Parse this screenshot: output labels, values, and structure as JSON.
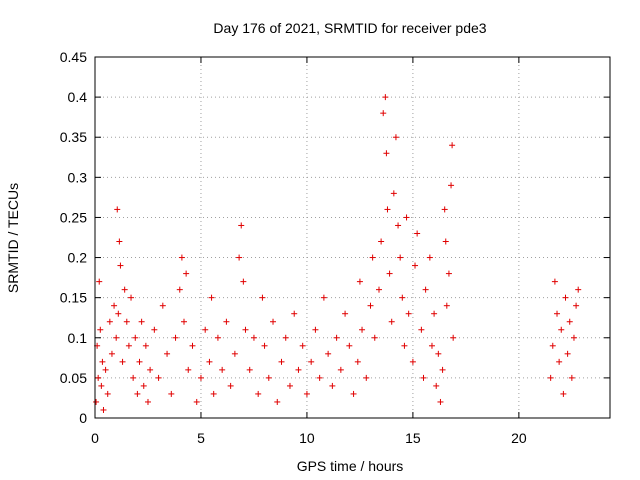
{
  "chart_data": {
    "type": "scatter",
    "title": "Day 176 of 2021, SRMTID for receiver pde3",
    "xlabel": "GPS time / hours",
    "ylabel": "SRMTID / TECUs",
    "xlim": [
      0,
      24.3
    ],
    "ylim": [
      0,
      0.45
    ],
    "xticks": [
      0,
      5,
      10,
      15,
      20
    ],
    "xtick_labels": [
      "0",
      "5",
      "10",
      "15",
      "20"
    ],
    "yticks": [
      0,
      0.05,
      0.1,
      0.15,
      0.2,
      0.25,
      0.3,
      0.35,
      0.4,
      0.45
    ],
    "ytick_labels": [
      "0",
      "0.05",
      "0.1",
      "0.15",
      "0.2",
      "0.25",
      "0.3",
      "0.35",
      "0.4",
      "0.45"
    ],
    "grid": true,
    "marker": "+",
    "color": "#e00000",
    "series": [
      {
        "name": "SRMTID",
        "points": [
          [
            0.05,
            0.02
          ],
          [
            0.1,
            0.09
          ],
          [
            0.15,
            0.05
          ],
          [
            0.2,
            0.17
          ],
          [
            0.25,
            0.11
          ],
          [
            0.3,
            0.04
          ],
          [
            0.35,
            0.07
          ],
          [
            0.4,
            0.01
          ],
          [
            0.5,
            0.06
          ],
          [
            0.6,
            0.03
          ],
          [
            0.7,
            0.12
          ],
          [
            0.8,
            0.08
          ],
          [
            0.9,
            0.14
          ],
          [
            1.0,
            0.1
          ],
          [
            1.05,
            0.26
          ],
          [
            1.1,
            0.13
          ],
          [
            1.15,
            0.22
          ],
          [
            1.2,
            0.19
          ],
          [
            1.3,
            0.07
          ],
          [
            1.4,
            0.16
          ],
          [
            1.5,
            0.12
          ],
          [
            1.6,
            0.09
          ],
          [
            1.7,
            0.15
          ],
          [
            1.8,
            0.05
          ],
          [
            1.9,
            0.1
          ],
          [
            2.0,
            0.03
          ],
          [
            2.1,
            0.07
          ],
          [
            2.2,
            0.12
          ],
          [
            2.3,
            0.04
          ],
          [
            2.4,
            0.09
          ],
          [
            2.5,
            0.02
          ],
          [
            2.6,
            0.06
          ],
          [
            2.8,
            0.11
          ],
          [
            3.0,
            0.05
          ],
          [
            3.2,
            0.14
          ],
          [
            3.4,
            0.08
          ],
          [
            3.6,
            0.03
          ],
          [
            3.8,
            0.1
          ],
          [
            4.0,
            0.16
          ],
          [
            4.1,
            0.2
          ],
          [
            4.2,
            0.12
          ],
          [
            4.3,
            0.18
          ],
          [
            4.4,
            0.06
          ],
          [
            4.6,
            0.09
          ],
          [
            4.8,
            0.02
          ],
          [
            5.0,
            0.05
          ],
          [
            5.2,
            0.11
          ],
          [
            5.4,
            0.07
          ],
          [
            5.5,
            0.15
          ],
          [
            5.6,
            0.03
          ],
          [
            5.8,
            0.1
          ],
          [
            6.0,
            0.06
          ],
          [
            6.2,
            0.12
          ],
          [
            6.4,
            0.04
          ],
          [
            6.6,
            0.08
          ],
          [
            6.8,
            0.2
          ],
          [
            6.9,
            0.24
          ],
          [
            7.0,
            0.17
          ],
          [
            7.1,
            0.11
          ],
          [
            7.3,
            0.06
          ],
          [
            7.5,
            0.1
          ],
          [
            7.7,
            0.03
          ],
          [
            7.9,
            0.15
          ],
          [
            8.0,
            0.09
          ],
          [
            8.2,
            0.05
          ],
          [
            8.4,
            0.12
          ],
          [
            8.6,
            0.02
          ],
          [
            8.8,
            0.07
          ],
          [
            9.0,
            0.1
          ],
          [
            9.2,
            0.04
          ],
          [
            9.4,
            0.13
          ],
          [
            9.6,
            0.06
          ],
          [
            9.8,
            0.09
          ],
          [
            10.0,
            0.03
          ],
          [
            10.2,
            0.07
          ],
          [
            10.4,
            0.11
          ],
          [
            10.6,
            0.05
          ],
          [
            10.8,
            0.15
          ],
          [
            11.0,
            0.08
          ],
          [
            11.2,
            0.04
          ],
          [
            11.4,
            0.1
          ],
          [
            11.6,
            0.06
          ],
          [
            11.8,
            0.13
          ],
          [
            12.0,
            0.09
          ],
          [
            12.2,
            0.03
          ],
          [
            12.4,
            0.07
          ],
          [
            12.5,
            0.17
          ],
          [
            12.6,
            0.11
          ],
          [
            12.8,
            0.05
          ],
          [
            13.0,
            0.14
          ],
          [
            13.1,
            0.2
          ],
          [
            13.2,
            0.1
          ],
          [
            13.4,
            0.16
          ],
          [
            13.5,
            0.22
          ],
          [
            13.6,
            0.38
          ],
          [
            13.7,
            0.4
          ],
          [
            13.75,
            0.33
          ],
          [
            13.8,
            0.26
          ],
          [
            13.9,
            0.18
          ],
          [
            14.0,
            0.12
          ],
          [
            14.1,
            0.28
          ],
          [
            14.2,
            0.35
          ],
          [
            14.3,
            0.24
          ],
          [
            14.4,
            0.2
          ],
          [
            14.5,
            0.15
          ],
          [
            14.6,
            0.09
          ],
          [
            14.7,
            0.25
          ],
          [
            14.8,
            0.13
          ],
          [
            15.0,
            0.07
          ],
          [
            15.1,
            0.19
          ],
          [
            15.2,
            0.23
          ],
          [
            15.4,
            0.11
          ],
          [
            15.5,
            0.05
          ],
          [
            15.6,
            0.16
          ],
          [
            15.8,
            0.2
          ],
          [
            15.9,
            0.09
          ],
          [
            16.0,
            0.13
          ],
          [
            16.1,
            0.04
          ],
          [
            16.2,
            0.08
          ],
          [
            16.3,
            0.02
          ],
          [
            16.4,
            0.06
          ],
          [
            16.5,
            0.26
          ],
          [
            16.55,
            0.22
          ],
          [
            16.6,
            0.14
          ],
          [
            16.7,
            0.18
          ],
          [
            16.8,
            0.29
          ],
          [
            16.85,
            0.34
          ],
          [
            16.9,
            0.1
          ],
          [
            21.5,
            0.05
          ],
          [
            21.6,
            0.09
          ],
          [
            21.7,
            0.17
          ],
          [
            21.8,
            0.13
          ],
          [
            21.9,
            0.07
          ],
          [
            22.0,
            0.11
          ],
          [
            22.1,
            0.03
          ],
          [
            22.2,
            0.15
          ],
          [
            22.3,
            0.08
          ],
          [
            22.4,
            0.12
          ],
          [
            22.5,
            0.05
          ],
          [
            22.6,
            0.1
          ],
          [
            22.7,
            0.14
          ],
          [
            22.8,
            0.16
          ]
        ]
      }
    ]
  }
}
